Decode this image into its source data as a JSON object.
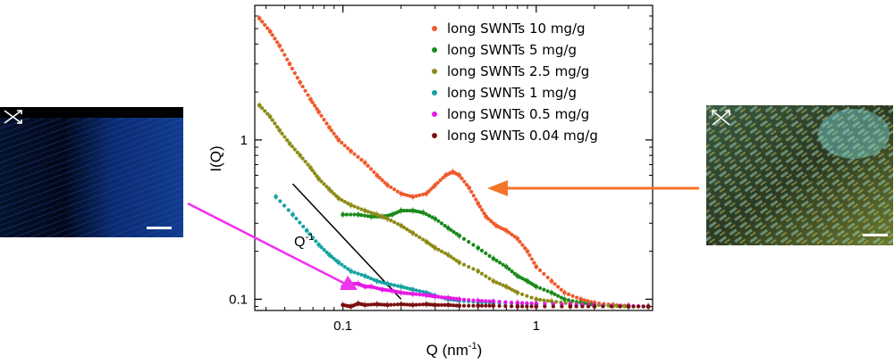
{
  "chart_data": {
    "type": "scatter",
    "title": "",
    "xlabel": "Q (nm",
    "xlabel_sup": "-1",
    "xlabel_suffix": ")",
    "ylabel": "I(Q)",
    "xscale": "log",
    "yscale": "log",
    "xlim": [
      0.035,
      4
    ],
    "ylim": [
      0.085,
      7
    ],
    "xticks": [
      {
        "value": 0.1,
        "label": "0.1"
      },
      {
        "value": 1,
        "label": "1"
      }
    ],
    "yticks": [
      {
        "value": 0.1,
        "label": "0.1"
      },
      {
        "value": 1,
        "label": "1"
      }
    ],
    "grid": false,
    "legend_position": "top-right",
    "annotation": {
      "text": "Q",
      "sup": "-1",
      "line_x": [
        0.055,
        0.2
      ],
      "line_y": [
        0.53,
        0.1
      ]
    },
    "series": [
      {
        "name": "long SWNTs 10 mg/g",
        "color": "#f0592b",
        "points": [
          [
            0.037,
            5.8
          ],
          [
            0.042,
            4.8
          ],
          [
            0.047,
            3.9
          ],
          [
            0.053,
            3.0
          ],
          [
            0.06,
            2.3
          ],
          [
            0.068,
            1.8
          ],
          [
            0.075,
            1.5
          ],
          [
            0.085,
            1.2
          ],
          [
            0.095,
            1.0
          ],
          [
            0.11,
            0.85
          ],
          [
            0.13,
            0.72
          ],
          [
            0.15,
            0.6
          ],
          [
            0.17,
            0.52
          ],
          [
            0.2,
            0.46
          ],
          [
            0.23,
            0.44
          ],
          [
            0.27,
            0.46
          ],
          [
            0.3,
            0.52
          ],
          [
            0.34,
            0.6
          ],
          [
            0.37,
            0.63
          ],
          [
            0.4,
            0.6
          ],
          [
            0.45,
            0.5
          ],
          [
            0.5,
            0.4
          ],
          [
            0.55,
            0.33
          ],
          [
            0.62,
            0.29
          ],
          [
            0.7,
            0.27
          ],
          [
            0.8,
            0.24
          ],
          [
            0.9,
            0.2
          ],
          [
            1.0,
            0.16
          ],
          [
            1.2,
            0.13
          ],
          [
            1.4,
            0.11
          ],
          [
            1.7,
            0.1
          ],
          [
            2.0,
            0.095
          ],
          [
            2.5,
            0.092
          ],
          [
            3.0,
            0.091
          ],
          [
            3.8,
            0.09
          ]
        ]
      },
      {
        "name": "long SWNTs 5 mg/g",
        "color": "#1a8a1a",
        "points": [
          [
            0.1,
            0.34
          ],
          [
            0.12,
            0.34
          ],
          [
            0.14,
            0.33
          ],
          [
            0.16,
            0.33
          ],
          [
            0.18,
            0.34
          ],
          [
            0.2,
            0.36
          ],
          [
            0.23,
            0.36
          ],
          [
            0.26,
            0.35
          ],
          [
            0.3,
            0.32
          ],
          [
            0.35,
            0.28
          ],
          [
            0.4,
            0.25
          ],
          [
            0.5,
            0.21
          ],
          [
            0.6,
            0.18
          ],
          [
            0.7,
            0.16
          ],
          [
            0.8,
            0.14
          ],
          [
            0.9,
            0.13
          ],
          [
            1.0,
            0.12
          ],
          [
            1.2,
            0.11
          ],
          [
            1.4,
            0.1
          ],
          [
            1.7,
            0.095
          ],
          [
            2.0,
            0.092
          ],
          [
            2.5,
            0.091
          ],
          [
            3.0,
            0.09
          ],
          [
            3.8,
            0.09
          ]
        ]
      },
      {
        "name": "long SWNTs 2.5 mg/g",
        "color": "#8c8c17",
        "points": [
          [
            0.037,
            1.65
          ],
          [
            0.042,
            1.4
          ],
          [
            0.047,
            1.15
          ],
          [
            0.053,
            0.95
          ],
          [
            0.06,
            0.8
          ],
          [
            0.068,
            0.67
          ],
          [
            0.075,
            0.57
          ],
          [
            0.085,
            0.49
          ],
          [
            0.095,
            0.43
          ],
          [
            0.11,
            0.39
          ],
          [
            0.13,
            0.36
          ],
          [
            0.15,
            0.34
          ],
          [
            0.17,
            0.32
          ],
          [
            0.2,
            0.29
          ],
          [
            0.23,
            0.26
          ],
          [
            0.27,
            0.23
          ],
          [
            0.3,
            0.21
          ],
          [
            0.35,
            0.19
          ],
          [
            0.4,
            0.17
          ],
          [
            0.5,
            0.15
          ],
          [
            0.6,
            0.13
          ],
          [
            0.7,
            0.12
          ],
          [
            0.8,
            0.11
          ],
          [
            1.0,
            0.1
          ],
          [
            1.2,
            0.097
          ],
          [
            1.5,
            0.094
          ],
          [
            2.0,
            0.092
          ],
          [
            2.5,
            0.091
          ],
          [
            3.0,
            0.09
          ],
          [
            3.8,
            0.09
          ]
        ]
      },
      {
        "name": "long SWNTs 1 mg/g",
        "color": "#17a3a3",
        "points": [
          [
            0.045,
            0.44
          ],
          [
            0.055,
            0.34
          ],
          [
            0.065,
            0.27
          ],
          [
            0.075,
            0.22
          ],
          [
            0.085,
            0.19
          ],
          [
            0.095,
            0.17
          ],
          [
            0.11,
            0.15
          ],
          [
            0.13,
            0.14
          ],
          [
            0.15,
            0.13
          ],
          [
            0.17,
            0.125
          ],
          [
            0.2,
            0.12
          ],
          [
            0.23,
            0.115
          ],
          [
            0.27,
            0.11
          ],
          [
            0.3,
            0.105
          ],
          [
            0.35,
            0.1
          ],
          [
            0.4,
            0.098
          ],
          [
            0.5,
            0.096
          ],
          [
            0.6,
            0.095
          ],
          [
            0.8,
            0.094
          ],
          [
            1.0,
            0.093
          ],
          [
            1.5,
            0.092
          ],
          [
            2.0,
            0.091
          ],
          [
            3.0,
            0.09
          ],
          [
            3.8,
            0.09
          ]
        ]
      },
      {
        "name": "long SWNTs 0.5 mg/g",
        "color": "#e619e6",
        "points": [
          [
            0.1,
            0.12
          ],
          [
            0.11,
            0.125
          ],
          [
            0.12,
            0.125
          ],
          [
            0.13,
            0.12
          ],
          [
            0.14,
            0.12
          ],
          [
            0.16,
            0.115
          ],
          [
            0.18,
            0.113
          ],
          [
            0.2,
            0.11
          ],
          [
            0.23,
            0.108
          ],
          [
            0.27,
            0.106
          ],
          [
            0.3,
            0.104
          ],
          [
            0.35,
            0.102
          ],
          [
            0.4,
            0.1
          ],
          [
            0.5,
            0.098
          ],
          [
            0.6,
            0.097
          ],
          [
            0.8,
            0.095
          ],
          [
            1.0,
            0.094
          ],
          [
            1.5,
            0.093
          ],
          [
            2.0,
            0.092
          ],
          [
            3.0,
            0.091
          ],
          [
            3.8,
            0.09
          ]
        ]
      },
      {
        "name": "long SWNTs 0.04 mg/g",
        "color": "#7a1010",
        "points": [
          [
            0.1,
            0.092
          ],
          [
            0.11,
            0.09
          ],
          [
            0.12,
            0.094
          ],
          [
            0.13,
            0.092
          ],
          [
            0.15,
            0.093
          ],
          [
            0.17,
            0.092
          ],
          [
            0.2,
            0.093
          ],
          [
            0.23,
            0.092
          ],
          [
            0.27,
            0.093
          ],
          [
            0.3,
            0.092
          ],
          [
            0.35,
            0.092
          ],
          [
            0.4,
            0.091
          ],
          [
            0.5,
            0.091
          ],
          [
            0.6,
            0.091
          ],
          [
            0.8,
            0.09
          ],
          [
            1.0,
            0.09
          ],
          [
            1.5,
            0.09
          ],
          [
            2.0,
            0.09
          ],
          [
            3.0,
            0.09
          ],
          [
            3.8,
            0.09
          ]
        ]
      }
    ]
  },
  "left_image": {
    "arrow_color": "#ee33ee",
    "bg_color": "#062a66"
  },
  "right_image": {
    "arrow_color": "#f47428",
    "bg_color": "#1f2a1c"
  }
}
